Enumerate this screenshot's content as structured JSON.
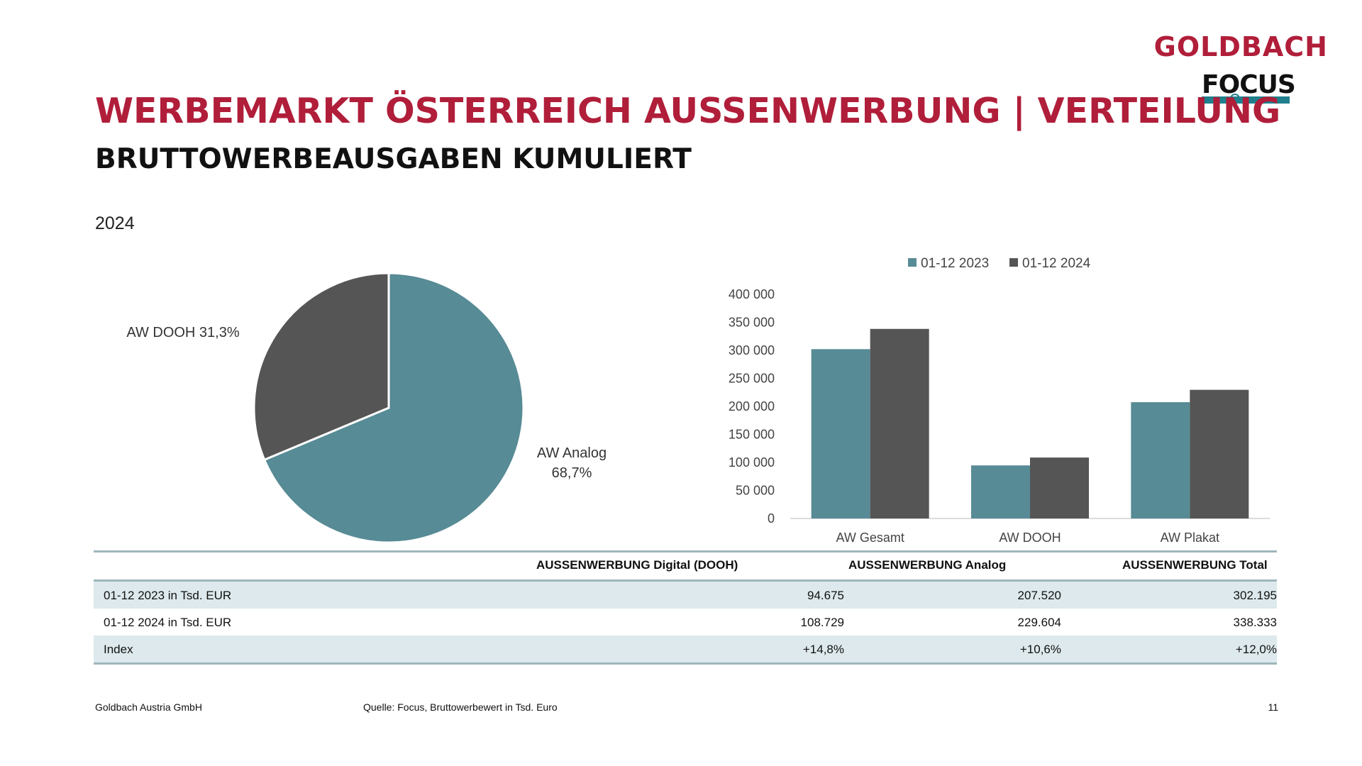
{
  "logo": {
    "brand": "GOLDBACH",
    "sub": "FOCUS"
  },
  "header": {
    "title": "WERBEMARKT ÖSTERREICH AUSSENWERBUNG | VERTEILUNG",
    "subtitle": "BRUTTOWERBEAUSGABEN KUMULIERT",
    "year": "2024"
  },
  "chart_data": [
    {
      "type": "pie",
      "title": "",
      "slices": [
        {
          "label": "AW Analog",
          "value": 68.7,
          "display": "68,7%",
          "color": "#578b95"
        },
        {
          "label": "AW DOOH",
          "value": 31.3,
          "display": "31,3%",
          "color": "#555555"
        }
      ]
    },
    {
      "type": "bar",
      "title": "",
      "categories": [
        "AW Gesamt",
        "AW DOOH",
        "AW Plakat"
      ],
      "series": [
        {
          "name": "01-12 2023",
          "values": [
            302195,
            94675,
            207520
          ],
          "color": "#578b95"
        },
        {
          "name": "01-12 2024",
          "values": [
            338333,
            108729,
            229604
          ],
          "color": "#555555"
        }
      ],
      "ylim": [
        0,
        400000
      ],
      "yticks": [
        "0",
        "50 000",
        "100 000",
        "150 000",
        "200 000",
        "250 000",
        "300 000",
        "350 000",
        "400 000"
      ],
      "legend": "top",
      "grid": false
    }
  ],
  "table": {
    "headers": [
      "AUSSENWERBUNG  Digital  (DOOH)",
      "AUSSENWERBUNG  Analog",
      "AUSSENWERBUNG  Total"
    ],
    "rows": [
      {
        "label": "01-12 2023 in Tsd. EUR",
        "values": [
          "94.675",
          "207.520",
          "302.195"
        ]
      },
      {
        "label": "01-12 2024 in Tsd. EUR",
        "values": [
          "108.729",
          "229.604",
          "338.333"
        ]
      },
      {
        "label": "Index",
        "values": [
          "+14,8%",
          "+10,6%",
          "+12,0%"
        ]
      }
    ]
  },
  "footer": {
    "company": "Goldbach Austria GmbH",
    "source": "Quelle: Focus, Bruttowerbewert in Tsd. Euro",
    "page": "11"
  }
}
